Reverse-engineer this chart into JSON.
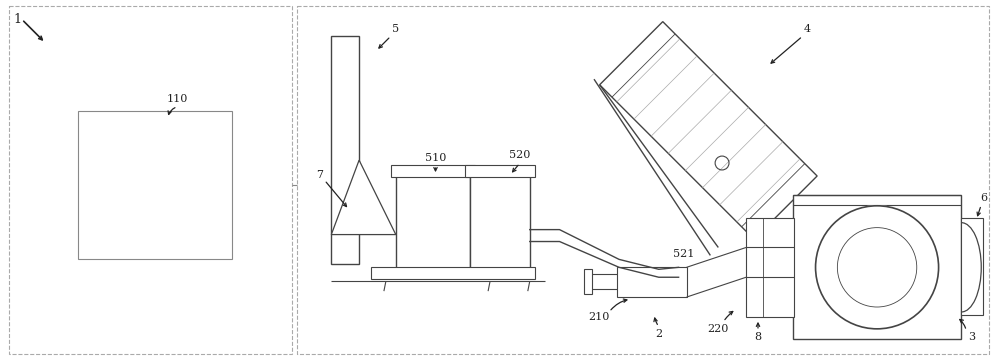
{
  "bg_color": "#ffffff",
  "line_color": "#444444",
  "light_line": "#999999",
  "fig_width": 10.0,
  "fig_height": 3.6,
  "dpi": 100
}
